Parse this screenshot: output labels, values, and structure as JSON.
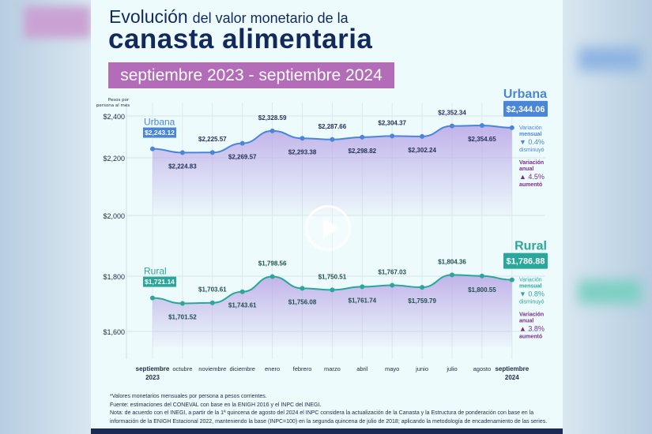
{
  "title_line1_a": "Evolución",
  "title_line1_b": "del valor monetario de la",
  "title_line2": "canasta alimentaria",
  "subtitle": "septiembre 2023 - septiembre 2024",
  "footnotes": [
    "*Valores monetarios mensuales por persona a pesos corrientes.",
    "Fuente: estimaciones del CONEVAL con base en la ENIGH 2016 y el INPC del INEGI.",
    "Nota: de acuerdo con el INEGI, a partir de la 1ª quincena de agosto del 2024 el INPC considera la actualización de la Canasta y la Estructura de ponderación con base en la",
    "información de la ENIGH Estacional 2022, manteniendo la base (INPC=100) en la segunda quincena de julio de 2018; aplicando la metodología de encadenamiento de las series."
  ],
  "colors": {
    "urbana": "#4a86d8",
    "rural": "#2aa69a",
    "fill": "#b9a6e6",
    "title": "#13295b",
    "anual": "#7a2a8a",
    "subtitle_bg": "#b36cb7"
  },
  "chart_data": {
    "type": "area",
    "ylabel": "Pesos por persona al mes",
    "yticks": [
      1600,
      1800,
      2000,
      2200,
      2400
    ],
    "ytick_labels": [
      "$1,600",
      "$1,800",
      "$2,000",
      "$2,200",
      "$2,400"
    ],
    "categories": [
      "septiembre 2023",
      "octubre",
      "noviembre",
      "diciembre",
      "enero",
      "febrero",
      "marzo",
      "abril",
      "mayo",
      "junio",
      "julio",
      "agosto",
      "septiembre 2024"
    ],
    "category_labels": [
      [
        "septiembre",
        "2023"
      ],
      [
        "octubre"
      ],
      [
        "noviembre"
      ],
      [
        "diciembre"
      ],
      [
        "enero"
      ],
      [
        "febrero"
      ],
      [
        "marzo"
      ],
      [
        "abril"
      ],
      [
        "mayo"
      ],
      [
        "junio"
      ],
      [
        "julio"
      ],
      [
        "agosto"
      ],
      [
        "septiembre",
        "2024"
      ]
    ],
    "grid": true,
    "series": [
      {
        "name": "Urbana",
        "values": [
          2243.12,
          2224.83,
          2225.57,
          2269.57,
          2328.59,
          2293.38,
          2287.66,
          2298.82,
          2304.37,
          2302.24,
          2352.34,
          2354.65,
          2344.06
        ],
        "labels": [
          "$2,243.12",
          "$2,224.83",
          "$2,225.57",
          "$2,269.57",
          "$2,328.59",
          "$2,293.38",
          "$2,287.66",
          "$2,298.82",
          "$2,304.37",
          "$2,302.24",
          "$2,352.34",
          "$2,354.65",
          "$2,344.06"
        ],
        "monthly_variation": {
          "label1": "Variación",
          "label2": "mensual",
          "value": "▼ 0.4%",
          "word": "disminuyó"
        },
        "annual_variation": {
          "label1": "Variación",
          "label2": "anual",
          "value": "▲ 4.5%",
          "word": "aumentó"
        }
      },
      {
        "name": "Rural",
        "values": [
          1721.14,
          1701.52,
          1703.61,
          1743.61,
          1798.56,
          1756.08,
          1750.51,
          1761.74,
          1767.03,
          1759.79,
          1804.36,
          1800.55,
          1786.88
        ],
        "labels": [
          "$1,721.14",
          "$1,701.52",
          "$1,703.61",
          "$1,743.61",
          "$1,798.56",
          "$1,756.08",
          "$1,750.51",
          "$1,761.74",
          "$1,767.03",
          "$1,759.79",
          "$1,804.36",
          "$1,800.55",
          "$1,786.88"
        ],
        "monthly_variation": {
          "label1": "Variación",
          "label2": "mensual",
          "value": "▼ 0.8%",
          "word": "disminuyó"
        },
        "annual_variation": {
          "label1": "Variación",
          "label2": "anual",
          "value": "▲ 3.8%",
          "word": "aumentó"
        }
      }
    ]
  }
}
